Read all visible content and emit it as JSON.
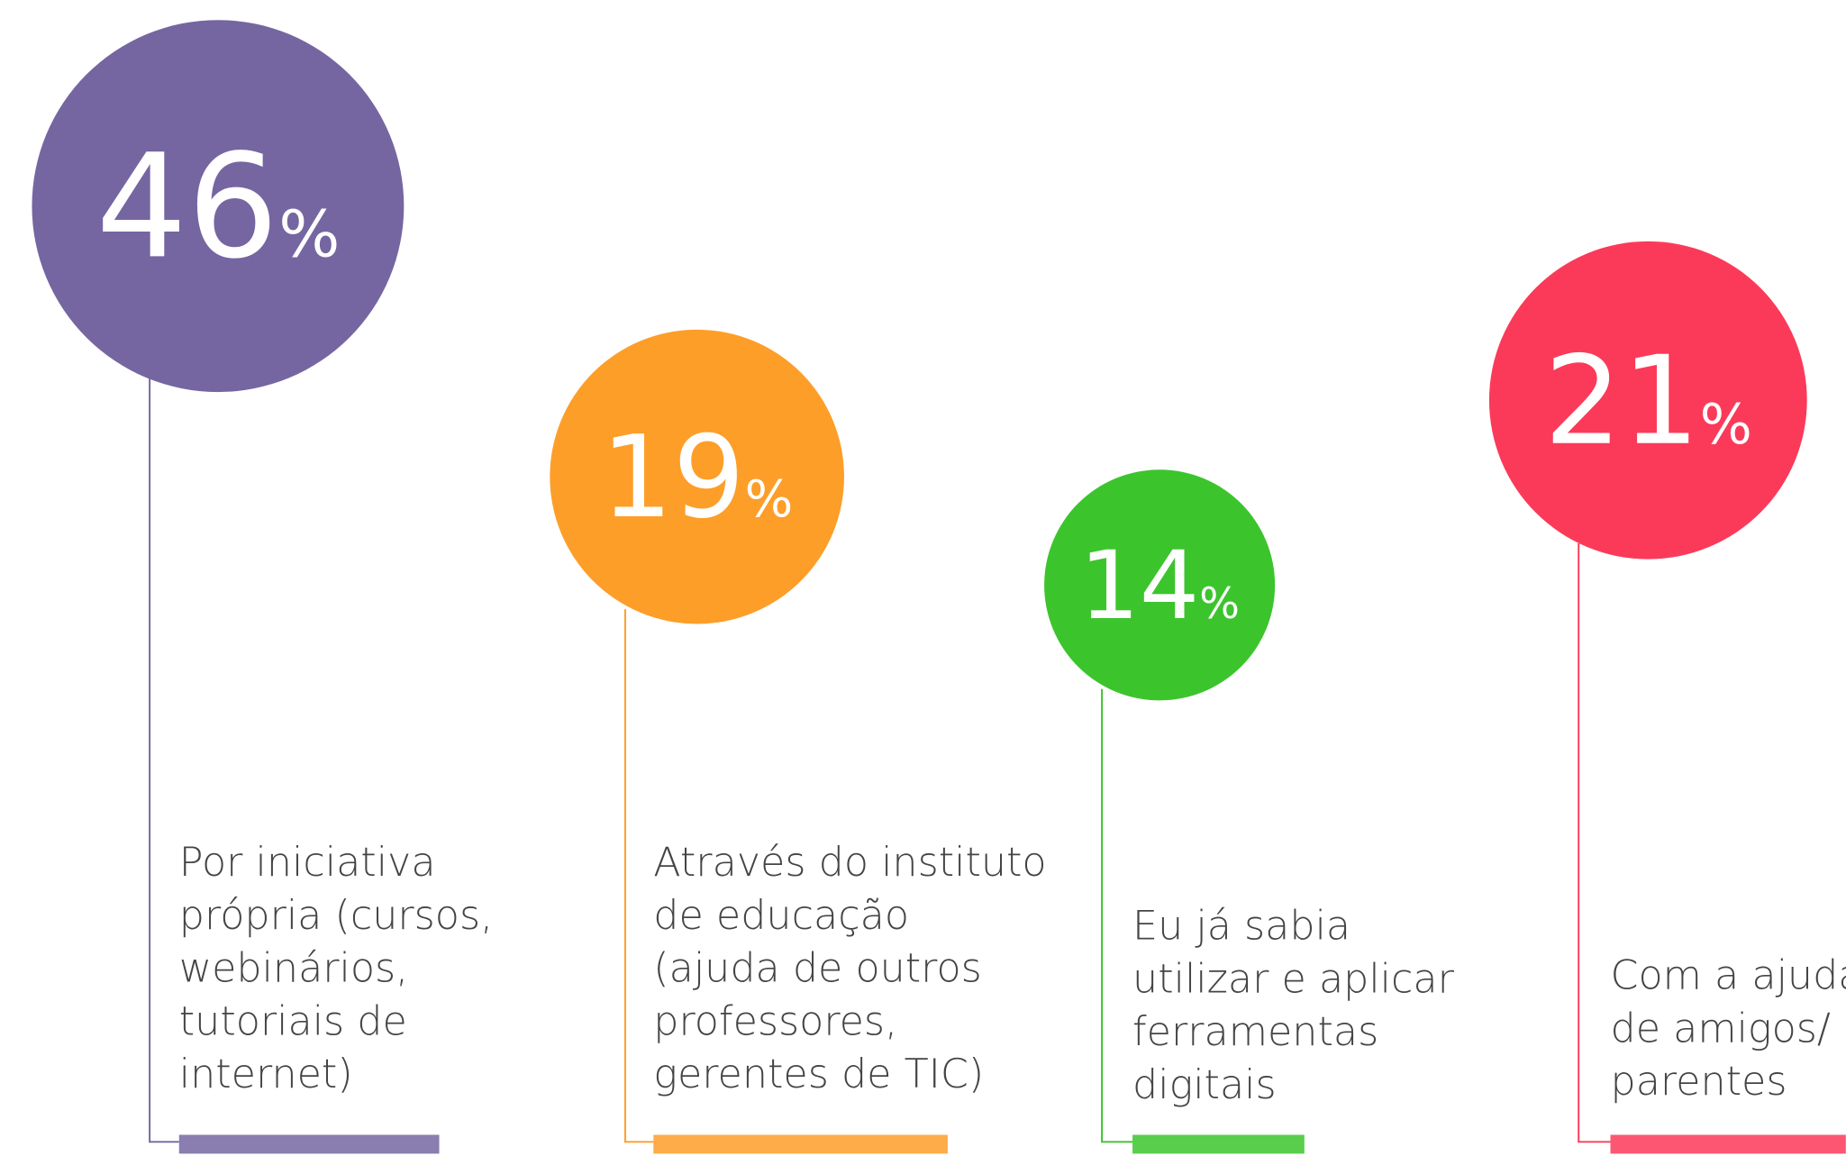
{
  "items": [
    {
      "value": 46,
      "unit": "%",
      "color": "#7566a1",
      "label": [
        "Por iniciativa",
        "própria (cursos,",
        "webinários,",
        "tutoriais de",
        "internet)"
      ]
    },
    {
      "value": 19,
      "unit": "%",
      "color": "#fd9e29",
      "label": [
        "Através do instituto",
        "de educação",
        "(ajuda de outros",
        "professores,",
        "gerentes de TIC)"
      ]
    },
    {
      "value": 14,
      "unit": "%",
      "color": "#3cc42d",
      "label": [
        "Eu já sabia",
        "utilizar e aplicar",
        "ferramentas",
        "digitais"
      ]
    },
    {
      "value": 21,
      "unit": "%",
      "color": "#fb3a59",
      "label": [
        "Com a ajuda",
        "de amigos/",
        "parentes"
      ]
    }
  ]
}
